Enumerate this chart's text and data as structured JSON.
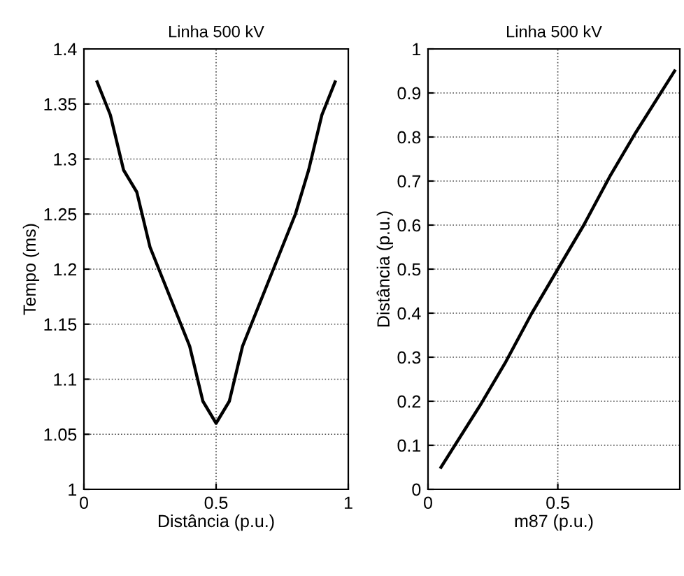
{
  "chart_data": [
    {
      "type": "line",
      "title": "Linha 500 kV",
      "xlabel": "Distância (p.u.)",
      "ylabel": "Tempo (ms)",
      "x": [
        0.05,
        0.1,
        0.15,
        0.2,
        0.25,
        0.3,
        0.35,
        0.4,
        0.45,
        0.5,
        0.55,
        0.6,
        0.65,
        0.7,
        0.75,
        0.8,
        0.85,
        0.9,
        0.95
      ],
      "series": [
        {
          "color": "#000000",
          "values": [
            1.37,
            1.34,
            1.29,
            1.27,
            1.22,
            1.19,
            1.16,
            1.13,
            1.08,
            1.06,
            1.08,
            1.13,
            1.16,
            1.19,
            1.22,
            1.25,
            1.29,
            1.34,
            1.37
          ]
        }
      ],
      "xlim": [
        0,
        1
      ],
      "xticks": [
        0,
        0.5,
        1
      ],
      "ylim": [
        1,
        1.4
      ],
      "yticks": [
        1,
        1.05,
        1.1,
        1.15,
        1.2,
        1.25,
        1.3,
        1.35,
        1.4
      ],
      "grid": true
    },
    {
      "type": "line",
      "title": "Linha 500 kV",
      "xlabel": "m87 (p.u.)",
      "ylabel": "Distância (p.u.)",
      "x": [
        0.05,
        0.2,
        0.3,
        0.4,
        0.5,
        0.6,
        0.7,
        0.8,
        0.95
      ],
      "series": [
        {
          "color": "#000000",
          "values": [
            0.05,
            0.19,
            0.29,
            0.4,
            0.5,
            0.6,
            0.71,
            0.81,
            0.95
          ]
        }
      ],
      "xlim": [
        0,
        0.97
      ],
      "xticks": [
        0,
        0.5
      ],
      "ylim": [
        0,
        1
      ],
      "yticks": [
        0,
        0.1,
        0.2,
        0.3,
        0.4,
        0.5,
        0.6,
        0.7,
        0.8,
        0.9,
        1
      ],
      "grid": true
    }
  ]
}
